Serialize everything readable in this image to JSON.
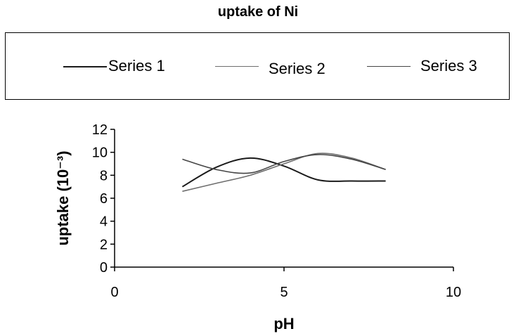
{
  "chart_data": {
    "type": "line",
    "title": "uptake of Ni",
    "xlabel": "pH",
    "ylabel": "uptake (10⁻³)",
    "xlim": [
      0,
      10
    ],
    "ylim": [
      0,
      12
    ],
    "xticks": [
      0,
      5,
      10
    ],
    "yticks": [
      0,
      2,
      4,
      6,
      8,
      10,
      12
    ],
    "grid": false,
    "legend_position": "top",
    "series": [
      {
        "name": "Series 1",
        "color": "#1a1a1a",
        "x": [
          2,
          3,
          4,
          5,
          6,
          7,
          8
        ],
        "y": [
          7.0,
          8.7,
          9.5,
          8.8,
          7.6,
          7.5,
          7.5
        ]
      },
      {
        "name": "Series 2",
        "color": "#6e6e6e",
        "x": [
          2,
          3,
          4,
          5,
          6,
          7,
          8
        ],
        "y": [
          6.6,
          7.3,
          8.0,
          9.0,
          9.9,
          9.5,
          8.5
        ]
      },
      {
        "name": "Series 3",
        "color": "#454545",
        "x": [
          2,
          3,
          4,
          5,
          6,
          7,
          8
        ],
        "y": [
          9.4,
          8.5,
          8.2,
          9.2,
          9.8,
          9.4,
          8.5
        ]
      }
    ]
  }
}
